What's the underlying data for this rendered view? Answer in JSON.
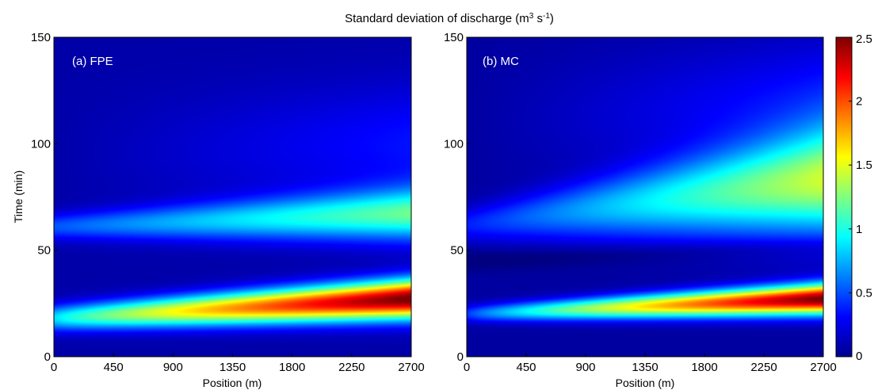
{
  "chart_data": {
    "type": "heatmap",
    "title_prefix": "Standard deviation of discharge (m",
    "title_sup1": "3",
    "title_mid": " s",
    "title_sup2": "-1",
    "title_suffix": ")",
    "shared_colorbar": {
      "colormap": "jet",
      "range": [
        0,
        2.5
      ],
      "ticks": [
        0,
        0.5,
        1,
        1.5,
        2,
        2.5
      ],
      "tick_labels": [
        "0",
        "0.5",
        "1",
        "1.5",
        "2",
        "2.5"
      ]
    },
    "panels": [
      {
        "label": "(a) FPE",
        "xlabel": "Position (m)",
        "ylabel": "Time (min)",
        "xlim": [
          0,
          2700
        ],
        "ylim": [
          0,
          150
        ],
        "xticks": [
          0,
          450,
          900,
          1350,
          1800,
          2250,
          2700
        ],
        "yticks": [
          0,
          50,
          100,
          150
        ],
        "features": {
          "background": 0.1,
          "peak_band": {
            "center_time_at_0": 18,
            "center_time_at_2700": 27,
            "width_at_0": 6,
            "width_at_2700": 9,
            "amp_at_0": 0.75,
            "amp_at_2700": 2.45
          },
          "secondary_band": {
            "center_time_at_0": 61,
            "center_time_at_2700": 67,
            "width_at_0": 6,
            "width_at_2700": 12,
            "amp_at_0": 0.42,
            "amp_at_2700": 1.05
          },
          "upper_diffuse_band": {
            "center_time_at_0": 95,
            "center_time_at_2700": 100,
            "width": 28,
            "amp_at_2700": 0.25
          }
        }
      },
      {
        "label": "(b) MC",
        "xlabel": "Position (m)",
        "ylabel": "",
        "xlim": [
          0,
          2700
        ],
        "ylim": [
          0,
          150
        ],
        "xticks": [
          0,
          450,
          900,
          1350,
          1800,
          2250,
          2700
        ],
        "yticks": [
          0,
          50,
          100,
          150
        ],
        "features": {
          "background": 0.08,
          "peak_band": {
            "center_time_at_0": 20,
            "center_time_at_2700": 27,
            "width_at_0": 4,
            "width_at_2700": 7,
            "amp_at_0": 0.35,
            "amp_at_2700": 2.45
          },
          "secondary_band": {
            "center_time_at_0": 62,
            "center_time_at_2700": 82,
            "width_at_0": 8,
            "width_at_2700": 24,
            "amp_at_0": 0.3,
            "amp_at_2700": 1.3
          },
          "upper_diffuse_band": {
            "center_time_at_0": 110,
            "center_time_at_2700": 118,
            "width": 30,
            "amp_at_2700": 0.3
          },
          "dark_gap": {
            "center_time_at_0": 45,
            "center_time_at_2700": 52,
            "depth": 0.1
          }
        }
      }
    ]
  }
}
